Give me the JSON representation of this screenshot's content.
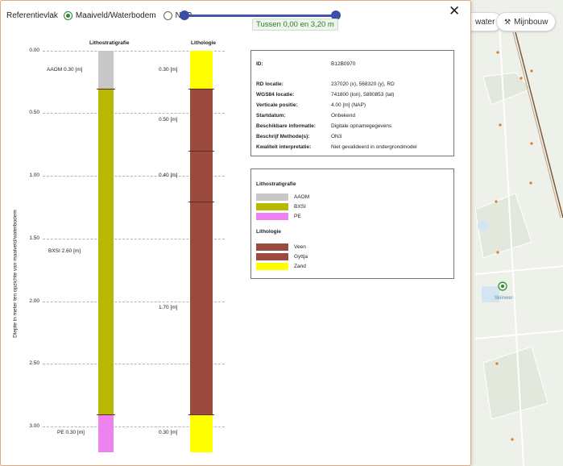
{
  "map": {
    "pill_water": "water",
    "pill_mijnbouw": "Mijnbouw",
    "place_label": "Skiinwer"
  },
  "panel": {
    "reference_label": "Referentievlak",
    "radio_options": [
      {
        "label": "Maaiveld/Waterbodem",
        "selected": true
      },
      {
        "label": "NAP",
        "selected": false
      }
    ],
    "slider_label": "Tussen 0,00 en 3,20 m",
    "close_icon": "close-icon"
  },
  "chart": {
    "col_lithostrat_title": "Lithostratigrafie",
    "col_lithologie_title": "Lithologie",
    "y_axis_label": "Diepte in meter ten opzichte van maaiveld/waterbodem",
    "y_ticks": [
      "0.00",
      "0.50",
      "1.00",
      "1.50",
      "2.00",
      "2.50",
      "3.00"
    ],
    "lithostrat_annotations": [
      "AAOM 0.30 [m]",
      "BXSI 2.60 [m]",
      "PE 0.30 [m]"
    ],
    "lithologie_annotations": [
      "0.30 [m]",
      "0.50 [m]",
      "0.40 [m]",
      "1.70 [m]",
      "0.30 [m]"
    ]
  },
  "chart_data": {
    "type": "table",
    "y_unit": "m",
    "ylim": [
      0,
      3.2
    ],
    "lithostratigrafie": [
      {
        "code": "AAOM",
        "top": 0.0,
        "bottom": 0.3,
        "color": "#c8c8c8"
      },
      {
        "code": "BXSI",
        "top": 0.3,
        "bottom": 2.9,
        "color": "#b8b800"
      },
      {
        "code": "PE",
        "top": 2.9,
        "bottom": 3.2,
        "color": "#ee82ee"
      }
    ],
    "lithologie": [
      {
        "name": "Zand",
        "top": 0.0,
        "bottom": 0.3,
        "color": "#ffff00"
      },
      {
        "name": "Veen",
        "top": 0.3,
        "bottom": 0.8,
        "color": "#9c4a3e"
      },
      {
        "name": "Veen",
        "top": 0.8,
        "bottom": 1.2,
        "color": "#9c4a3e"
      },
      {
        "name": "Veen",
        "top": 1.2,
        "bottom": 2.9,
        "color": "#9c4a3e"
      },
      {
        "name": "Zand",
        "top": 2.9,
        "bottom": 3.2,
        "color": "#ffff00"
      }
    ]
  },
  "info": {
    "rows": [
      {
        "label": "ID:",
        "value": "B12B0970"
      },
      {
        "label": "RD locatie:",
        "value": "237020 (x), 568320 (y), RD"
      },
      {
        "label": "WGS84 locatie:",
        "value": "741800 (lon), 5880853 (lat)"
      },
      {
        "label": "Verticale positie:",
        "value": "4.00 [m] (NAP)"
      },
      {
        "label": "Startdatum:",
        "value": "Onbekend"
      },
      {
        "label": "Beschikbare informatie:",
        "value": "Digitale opnamegegevens"
      },
      {
        "label": "Beschrijf Methode(s):",
        "value": "ON3"
      },
      {
        "label": "Kwaliteit interpretatie:",
        "value": "Niet gevalideerd in ondergrondmodel"
      }
    ]
  },
  "legend": {
    "lithostrat_title": "Lithostratigrafie",
    "lithostrat_items": [
      {
        "label": "AAOM",
        "color": "#c8c8c8"
      },
      {
        "label": "BXSI",
        "color": "#b8b800"
      },
      {
        "label": "PE",
        "color": "#ee82ee"
      }
    ],
    "lithologie_title": "Lithologie",
    "lithologie_items": [
      {
        "label": "Veen",
        "color": "#9c4a3e"
      },
      {
        "label": "Gyttja",
        "color": "#9c4a3e"
      },
      {
        "label": "Zand",
        "color": "#ffff00"
      }
    ]
  }
}
